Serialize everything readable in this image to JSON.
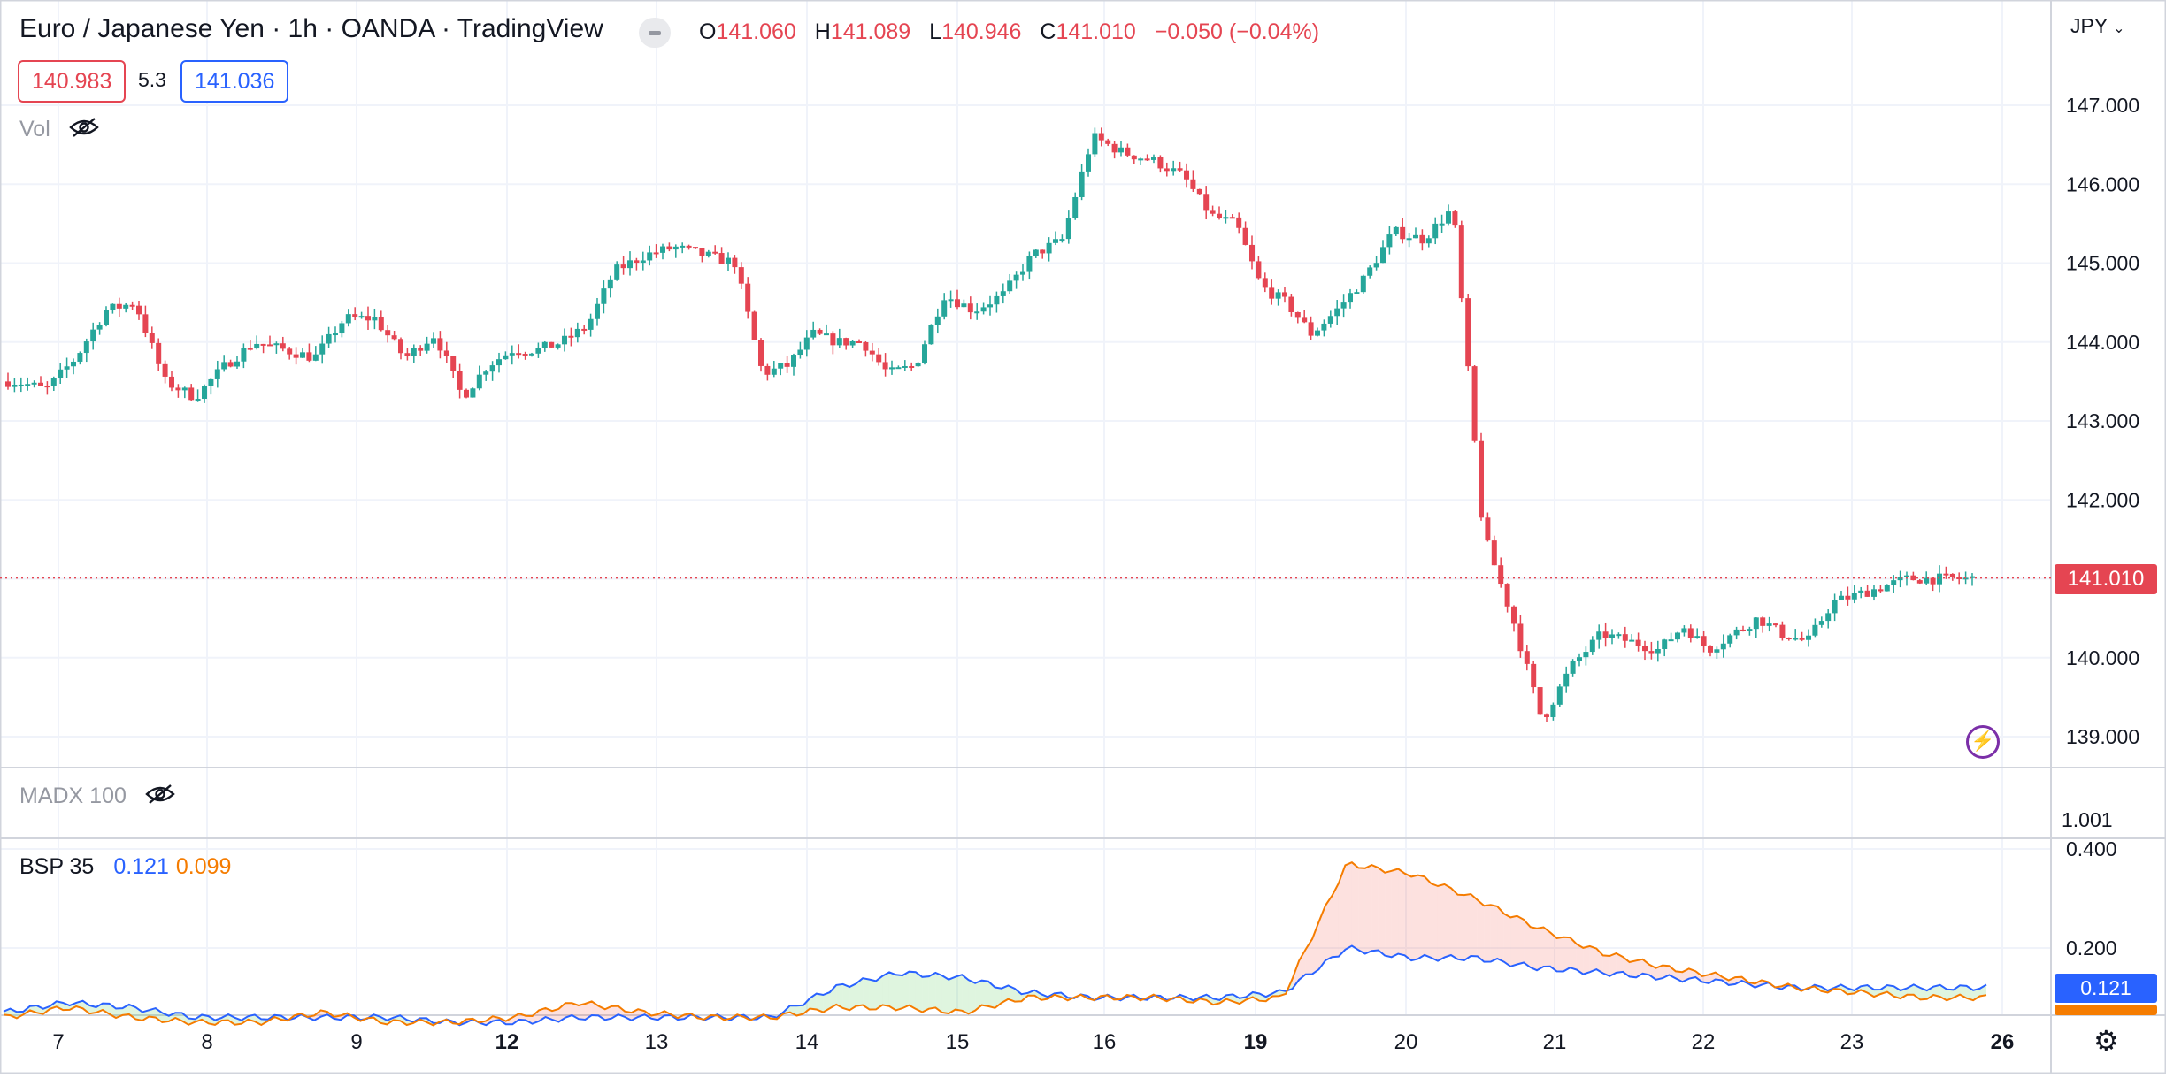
{
  "header": {
    "title": "Euro / Japanese Yen · 1h · OANDA · TradingView",
    "ohlc": [
      {
        "k": "O",
        "v": "141.060"
      },
      {
        "k": "H",
        "v": "141.089"
      },
      {
        "k": "L",
        "v": "140.946"
      },
      {
        "k": "C",
        "v": "141.010"
      },
      {
        "k": "",
        "v": "−0.050 (−0.04%)"
      }
    ],
    "bid": "140.983",
    "spread": "5.3",
    "ask": "141.036"
  },
  "indicators": {
    "vol_label": "Vol",
    "madx_label": "MADX 100",
    "madx_value": "1.001",
    "bsp_label": "BSP 35",
    "bsp_v1": "0.121",
    "bsp_v2": "0.099"
  },
  "axis": {
    "currency": "JPY",
    "last_price": "141.010"
  },
  "colors": {
    "up": "#26a69a",
    "down": "#e54552",
    "bsp_blue": "#2962ff",
    "bsp_orange": "#f57c00",
    "grid": "#f0f3fa"
  },
  "chart_data": [
    {
      "type": "candlestick",
      "title": "Euro / Japanese Yen · 1h · OANDA · TradingView",
      "ylim": [
        138.6,
        147.4
      ],
      "y_ticks": [
        "147.000",
        "146.000",
        "145.000",
        "144.000",
        "143.000",
        "142.000",
        "140.000",
        "139.000"
      ],
      "x_ticks": [
        "7",
        "8",
        "9",
        "12",
        "13",
        "14",
        "15",
        "16",
        "19",
        "20",
        "21",
        "22",
        "23",
        "26"
      ],
      "grid": true,
      "price_path": [
        [
          "7",
          143.5
        ],
        [
          "7",
          143.4
        ],
        [
          "7",
          143.8
        ],
        [
          "7",
          144.4
        ],
        [
          "7",
          144.5
        ],
        [
          "8",
          143.5
        ],
        [
          "8",
          143.3
        ],
        [
          "8",
          143.7
        ],
        [
          "8",
          144.0
        ],
        [
          "8",
          143.9
        ],
        [
          "9",
          143.8
        ],
        [
          "9",
          144.3
        ],
        [
          "9",
          144.3
        ],
        [
          "9",
          143.8
        ],
        [
          "9",
          144.1
        ],
        [
          "12",
          143.3
        ],
        [
          "12",
          143.7
        ],
        [
          "12",
          143.9
        ],
        [
          "12",
          143.9
        ],
        [
          "12",
          144.0
        ],
        [
          "12",
          144.2
        ],
        [
          "13",
          144.9
        ],
        [
          "13",
          145.1
        ],
        [
          "13",
          145.2
        ],
        [
          "13",
          145.1
        ],
        [
          "13",
          145.0
        ],
        [
          "14",
          143.6
        ],
        [
          "14",
          143.7
        ],
        [
          "14",
          144.1
        ],
        [
          "14",
          144.0
        ],
        [
          "14",
          144.0
        ],
        [
          "14",
          143.6
        ],
        [
          "15",
          143.7
        ],
        [
          "15",
          144.6
        ],
        [
          "15",
          144.4
        ],
        [
          "15",
          144.6
        ],
        [
          "15",
          145.1
        ],
        [
          "16",
          145.3
        ],
        [
          "16",
          146.6
        ],
        [
          "16",
          146.4
        ],
        [
          "16",
          146.3
        ],
        [
          "16",
          146.1
        ],
        [
          "19",
          145.6
        ],
        [
          "19",
          145.5
        ],
        [
          "19",
          144.7
        ],
        [
          "19",
          144.5
        ],
        [
          "19",
          144.1
        ],
        [
          "19",
          144.4
        ],
        [
          "20",
          144.8
        ],
        [
          "20",
          145.4
        ],
        [
          "20",
          145.3
        ],
        [
          "20",
          145.7
        ],
        [
          "20",
          141.6
        ],
        [
          "21",
          140.5
        ],
        [
          "21",
          139.2
        ],
        [
          "21",
          139.9
        ],
        [
          "21",
          140.3
        ],
        [
          "21",
          140.2
        ],
        [
          "22",
          140.1
        ],
        [
          "22",
          140.4
        ],
        [
          "22",
          140.1
        ],
        [
          "22",
          140.3
        ],
        [
          "22",
          140.5
        ],
        [
          "22",
          140.3
        ],
        [
          "23",
          140.2
        ],
        [
          "23",
          140.7
        ],
        [
          "23",
          140.8
        ],
        [
          "23",
          140.9
        ],
        [
          "23",
          141.0
        ],
        [
          "23",
          141.0
        ]
      ]
    },
    {
      "type": "line",
      "title": "BSP 35",
      "ylim": [
        0.0,
        0.4
      ],
      "y_ticks": [
        "0.400",
        "0.200"
      ],
      "x_ticks": [
        "7",
        "8",
        "9",
        "12",
        "13",
        "14",
        "15",
        "16",
        "19",
        "20",
        "21",
        "22",
        "23",
        "26"
      ],
      "series": [
        {
          "name": "",
          "color": "#2962ff",
          "values": [
            0.07,
            0.09,
            0.08,
            0.06,
            0.06,
            0.06,
            0.06,
            0.05,
            0.05,
            0.06,
            0.06,
            0.06,
            0.06,
            0.12,
            0.15,
            0.14,
            0.11,
            0.1,
            0.1,
            0.1,
            0.11,
            0.2,
            0.18,
            0.18,
            0.16,
            0.15,
            0.14,
            0.13,
            0.12,
            0.12,
            0.12,
            0.12
          ]
        },
        {
          "name": "",
          "color": "#f57c00",
          "values": [
            0.06,
            0.08,
            0.06,
            0.05,
            0.05,
            0.07,
            0.05,
            0.05,
            0.06,
            0.09,
            0.07,
            0.06,
            0.06,
            0.08,
            0.08,
            0.07,
            0.1,
            0.1,
            0.1,
            0.09,
            0.1,
            0.37,
            0.35,
            0.3,
            0.24,
            0.19,
            0.16,
            0.14,
            0.12,
            0.11,
            0.1,
            0.1
          ]
        }
      ]
    }
  ]
}
